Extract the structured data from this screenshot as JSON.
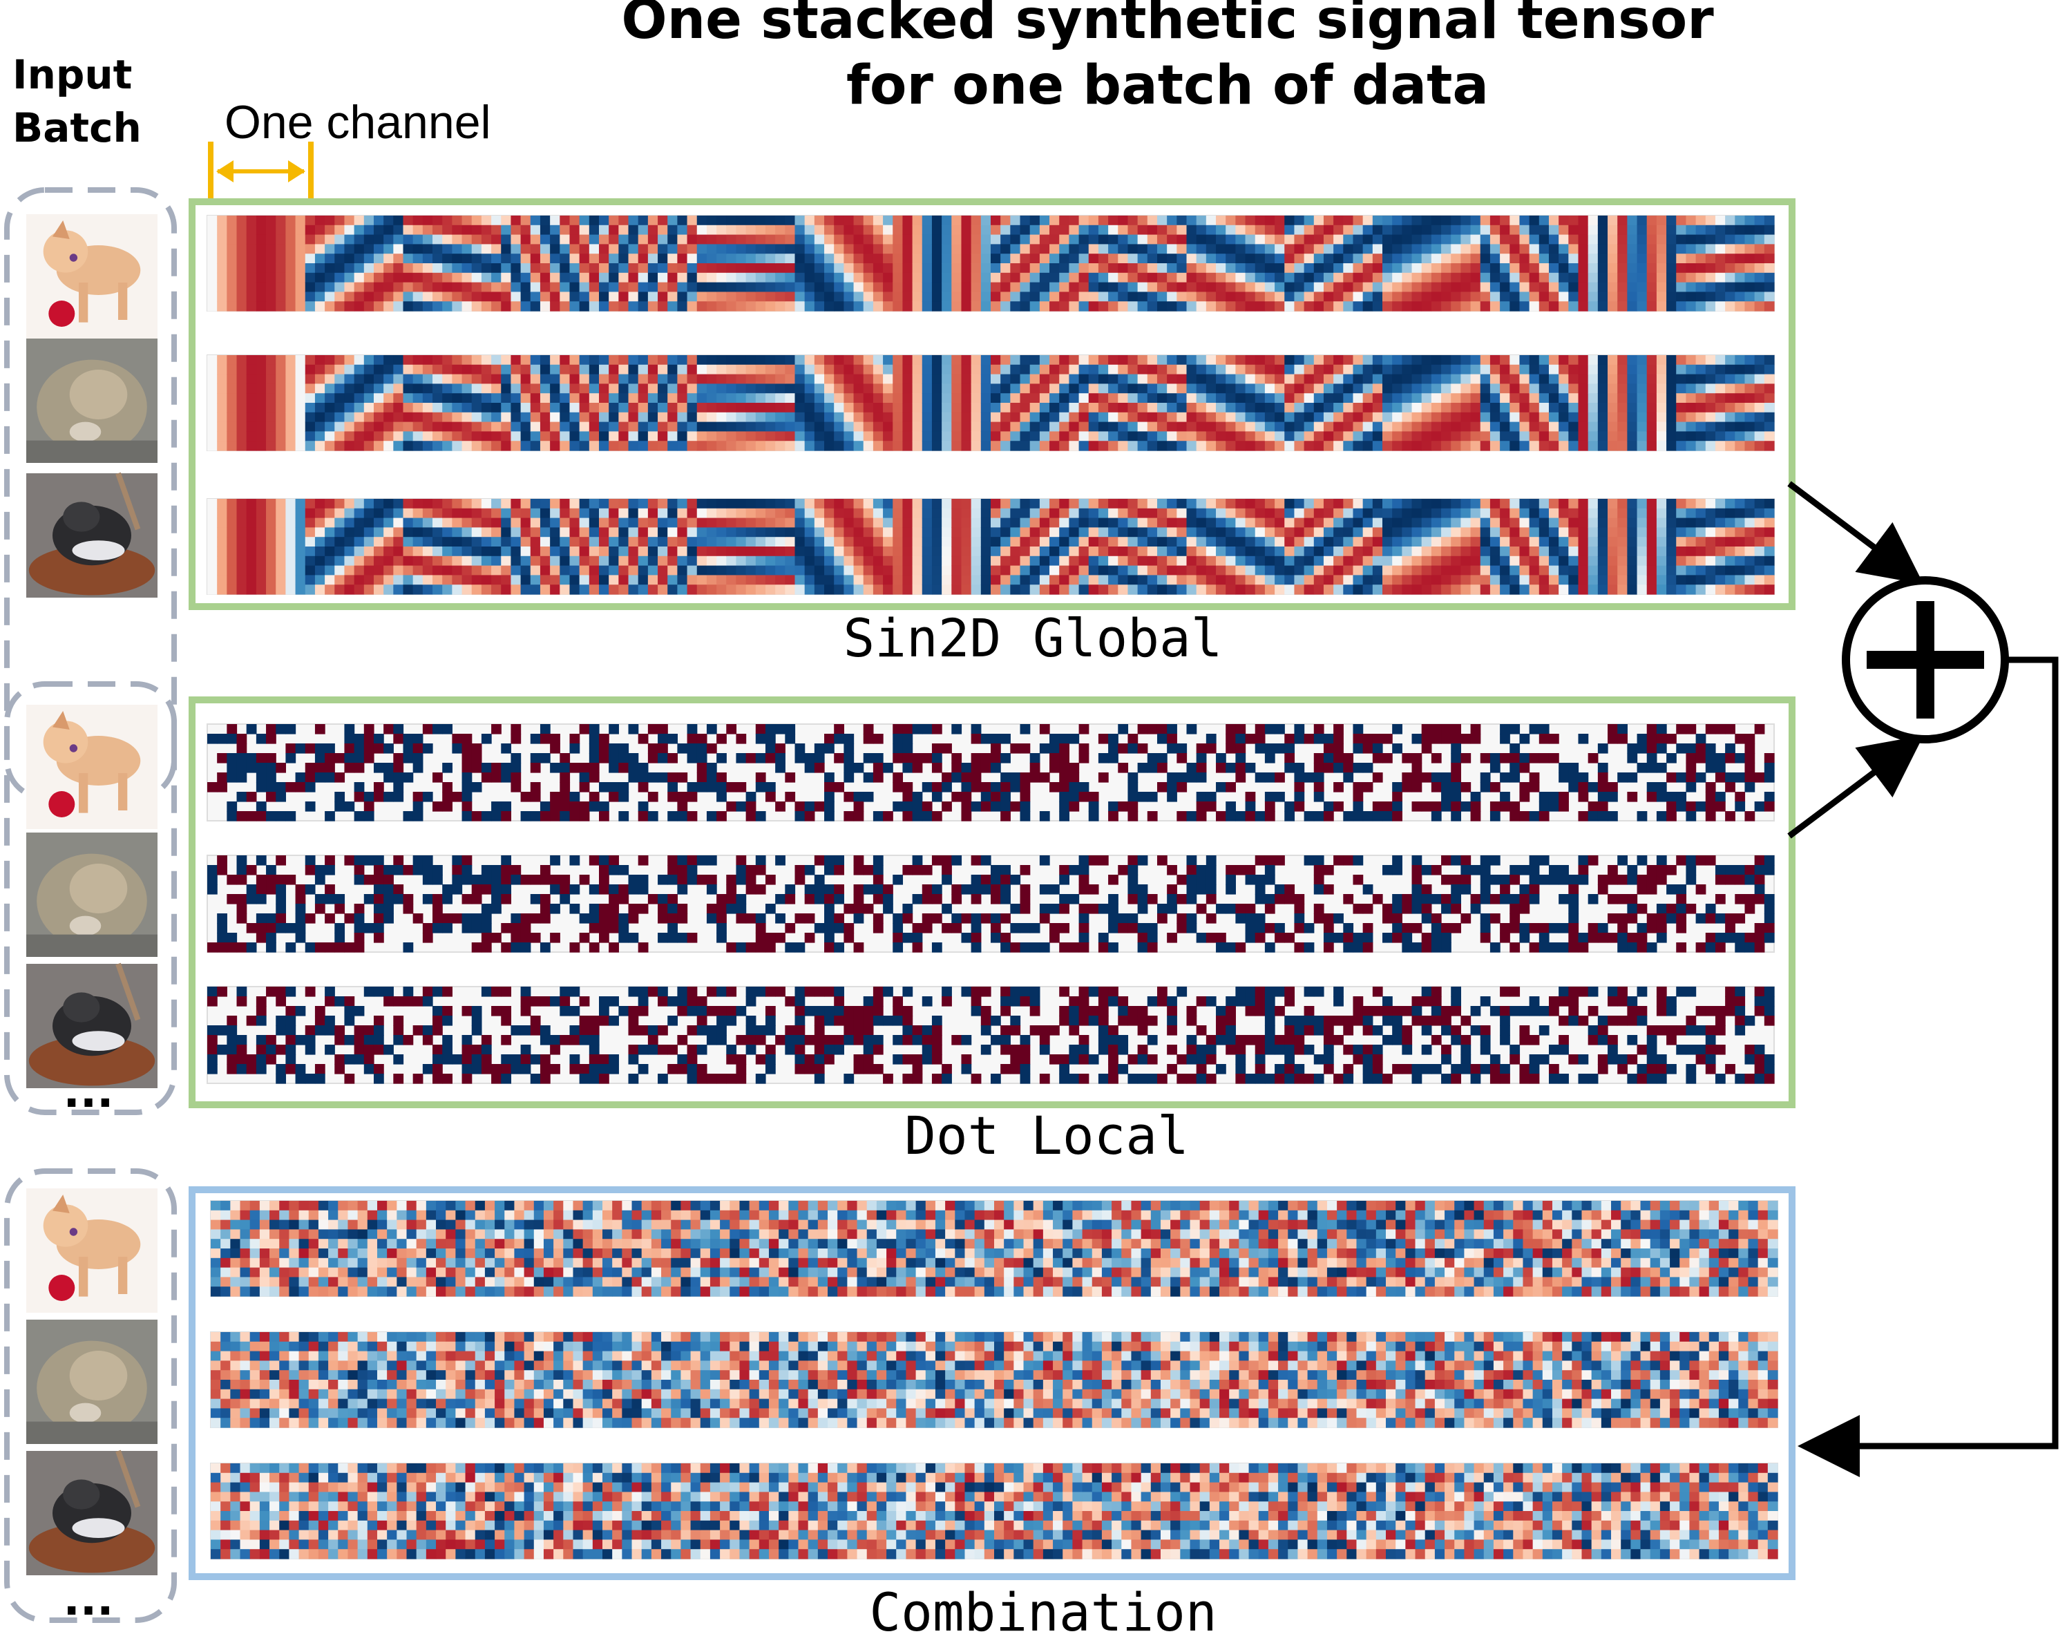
{
  "title": {
    "line1": "One stacked synthetic signal tensor",
    "line2": "for one batch of data"
  },
  "input_batch": {
    "line1": "Input",
    "line2": "Batch"
  },
  "channel_label": "One channel",
  "ellipsis": "...",
  "sections": [
    {
      "label": "Sin2D Global",
      "pattern": "sin2d",
      "border_color": "#a9d08e"
    },
    {
      "label": "Dot Local",
      "pattern": "dot",
      "border_color": "#a9d08e"
    },
    {
      "label": "Combination",
      "pattern": "combination",
      "border_color": "#9dc3e6"
    }
  ],
  "operator": "plus",
  "icons": [
    "dog-thumbnail",
    "cat-thumbnail",
    "cat-in-basket-thumbnail",
    "plus-circle-icon",
    "double-arrow-icon"
  ],
  "colors": {
    "red_dark": "#b2182b",
    "red_deep": "#67001f",
    "blue_dark": "#2166ac",
    "blue_deep": "#053061",
    "channel_marker": "#f5b800",
    "batch_border": "#a6aebd"
  }
}
